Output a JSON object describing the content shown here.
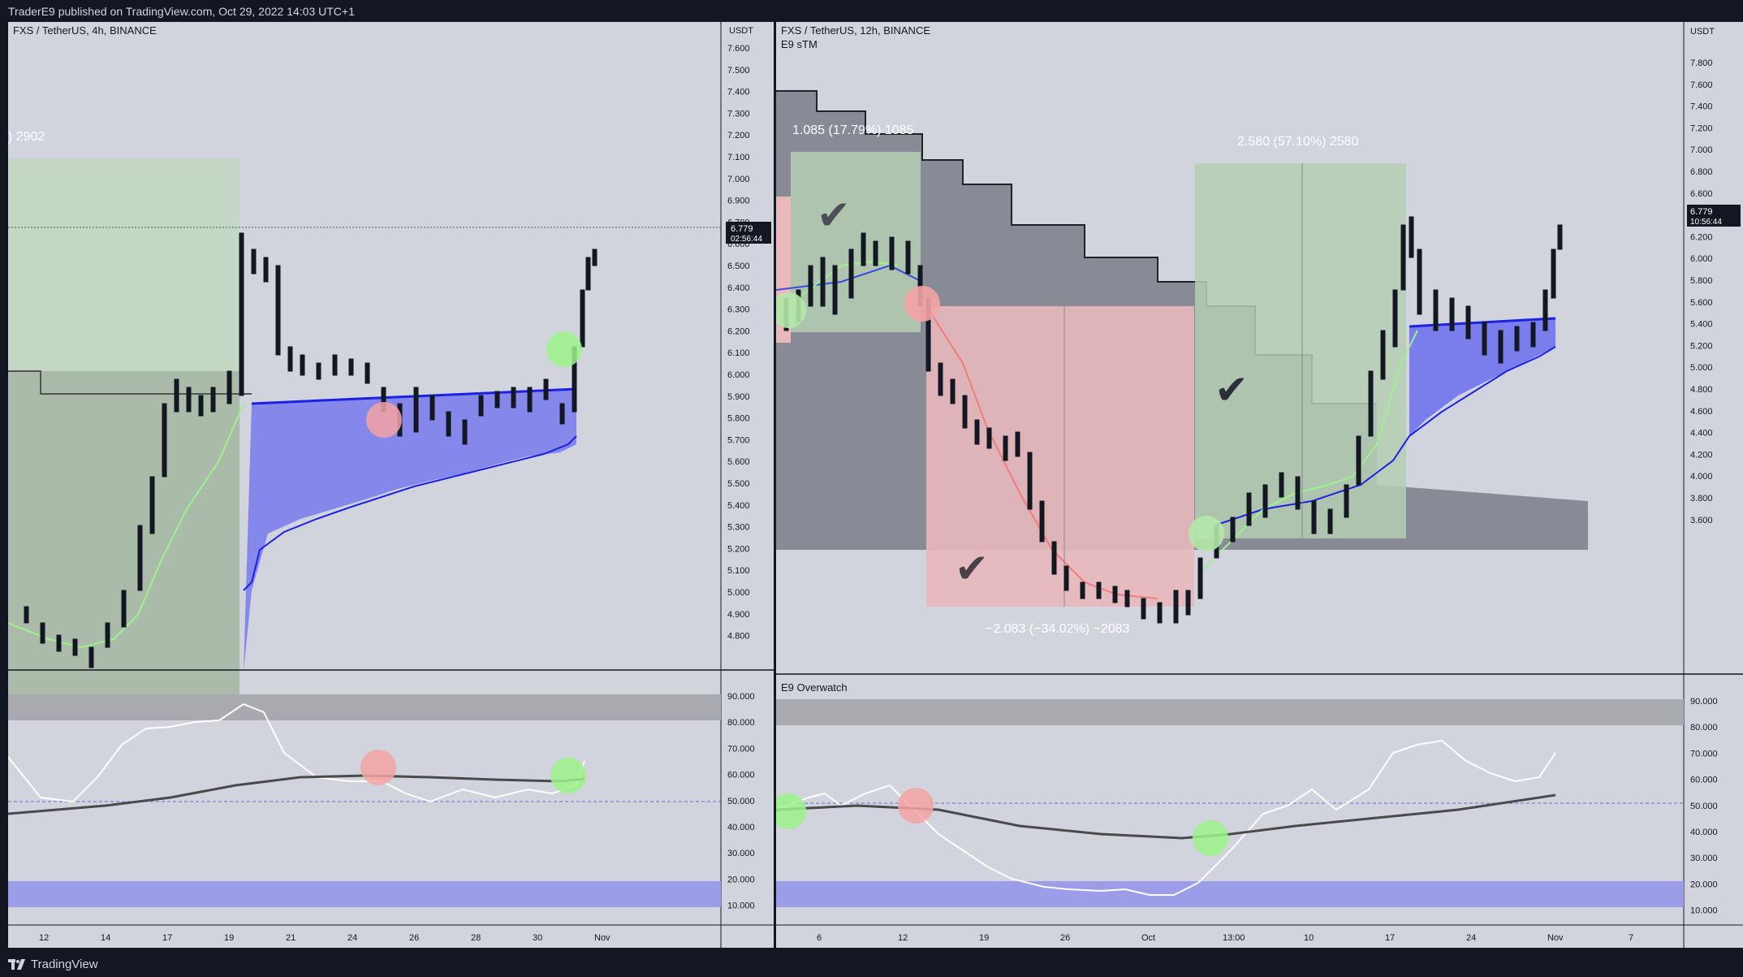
{
  "header": {
    "attribution": "TraderE9 published on TradingView.com, Oct 29, 2022 14:03 UTC+1"
  },
  "footer": {
    "logo_text": "TradingView"
  },
  "left_chart": {
    "symbol_label": "FXS / TetherUS, 4h, BINANCE",
    "currency": "USDT",
    "price_ticks": [
      "7.600",
      "7.500",
      "7.400",
      "7.300",
      "7.200",
      "7.100",
      "7.000",
      "6.900",
      "6.700",
      "6.600",
      "6.500",
      "6.400",
      "6.300",
      "6.200",
      "6.100",
      "6.000",
      "5.900",
      "5.800",
      "5.700",
      "5.600",
      "5.500",
      "5.400",
      "5.300",
      "5.200",
      "5.100",
      "5.000",
      "4.900",
      "4.800"
    ],
    "last_price": "6.779",
    "countdown": "02:56:44",
    "range_label": ") 2902",
    "osc_ticks": [
      "90.000",
      "80.000",
      "70.000",
      "60.000",
      "50.000",
      "40.000",
      "30.000",
      "20.000",
      "10.000"
    ],
    "time_ticks": [
      "12",
      "14",
      "17",
      "19",
      "21",
      "24",
      "26",
      "28",
      "30",
      "Nov"
    ]
  },
  "right_chart": {
    "symbol_label": "FXS / TetherUS, 12h, BINANCE",
    "indicator_label": "E9 sTM",
    "currency": "USDT",
    "price_ticks": [
      "7.800",
      "7.600",
      "7.400",
      "7.200",
      "7.000",
      "6.800",
      "6.600",
      "6.400",
      "6.200",
      "6.000",
      "5.800",
      "5.600",
      "5.400",
      "5.200",
      "5.000",
      "4.800",
      "4.600",
      "4.400",
      "4.200",
      "4.000",
      "3.800",
      "3.600"
    ],
    "last_price": "6.779",
    "countdown": "10:56:44",
    "range_up_label": "1.085 (17.79%) 1085",
    "range_up2_label": "2.580 (57.10%) 2580",
    "range_down_label": "−2.083 (−34.02%) −2083",
    "osc_label": "E9 Overwatch",
    "osc_ticks": [
      "90.000",
      "80.000",
      "70.000",
      "60.000",
      "50.000",
      "40.000",
      "30.000",
      "20.000",
      "10.000"
    ],
    "time_ticks": [
      "6",
      "12",
      "19",
      "26",
      "Oct",
      "13:00",
      "10",
      "17",
      "24",
      "Nov",
      "7"
    ]
  },
  "colors": {
    "background": "#d1d4dc",
    "frame": "#131722",
    "accent_blue": "#2a2ee6",
    "up_green": "#b4f0a8",
    "down_red": "#f4a3a3"
  }
}
